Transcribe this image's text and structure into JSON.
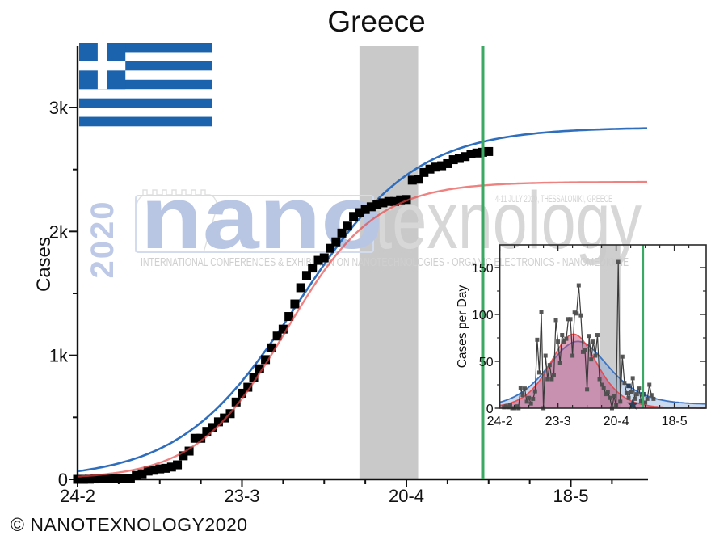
{
  "title": "Greece",
  "copyright": "© NANOTEXNOLOGY2020",
  "watermark": {
    "year": "2020",
    "logo_nano": "nano",
    "logo_tex": "texnology",
    "tagline": "INTERNATIONAL CONFERENCES & EXHIBITION ON NANOTECHNOLOGIES - ORGANIC ELECTRONICS - NANOMEDICINE",
    "event": "4-11 JULY 2020, THESSALONIKI, GREECE"
  },
  "colors": {
    "axis": "#111111",
    "square_marker": "#000000",
    "fit_blue": "#2e6ebd",
    "fit_red": "#e84545",
    "green_line": "#3aa963",
    "gray_band": "#c9c9c9",
    "inset_point": "#4f4f4f",
    "inset_line": "#3a3a3a",
    "pink_fill": "rgba(198,78,118,0.52)",
    "blue_fill": "rgba(130,165,215,0.42)",
    "star": "#2e4057",
    "flag_blue": "#1b63ac",
    "wm_blue": "#b9c6e3",
    "wm_gray": "#d7d7d7",
    "wm_tag": "#cfcfcf",
    "wm_box": "#d3dcef"
  },
  "chart_data": [
    {
      "type": "scatter",
      "name": "cumulative-cases",
      "title": "Greece",
      "ylabel": "Cases",
      "x_ticks": [
        {
          "day": 0,
          "label": "24-2"
        },
        {
          "day": 28,
          "label": "23-3"
        },
        {
          "day": 56,
          "label": "20-4"
        },
        {
          "day": 84,
          "label": "18-5"
        }
      ],
      "minor_x_days": [
        7,
        14,
        21,
        35,
        42,
        49,
        63,
        70,
        77,
        91
      ],
      "y_ticks": [
        {
          "v": 0,
          "label": "0"
        },
        {
          "v": 1000,
          "label": "1k"
        },
        {
          "v": 2000,
          "label": "2k"
        },
        {
          "v": 3000,
          "label": "3k"
        }
      ],
      "minor_y_values": [
        500,
        1500,
        2500
      ],
      "xlim_days": [
        0,
        97
      ],
      "ylim": [
        0,
        3496
      ],
      "grid": false,
      "legend": "none",
      "marker": "black-square",
      "series_note": "cumulative cases = running sum of daily_new through day 70",
      "last_data_day": 70,
      "fit_blue_logistic": {
        "L": 2840,
        "k": 10,
        "t0": 37.5
      },
      "fit_red_logistic": {
        "L": 2400,
        "k": 7.6,
        "t0": 35.5
      },
      "gray_band_days": [
        48,
        58
      ],
      "green_vline_day": 69
    },
    {
      "type": "scatter",
      "name": "daily-cases-inset",
      "ylabel": "Cases per Day",
      "x_ticks": [
        {
          "day": 0,
          "label": "24-2"
        },
        {
          "day": 28,
          "label": "23-3"
        },
        {
          "day": 56,
          "label": "20-4"
        },
        {
          "day": 84,
          "label": "18-5"
        }
      ],
      "minor_x_days": [
        7,
        14,
        21,
        35,
        42,
        49,
        63,
        70,
        77,
        91
      ],
      "y_ticks": [
        {
          "v": 0,
          "label": "0"
        },
        {
          "v": 50,
          "label": "50"
        },
        {
          "v": 100,
          "label": "100"
        },
        {
          "v": 150,
          "label": "150"
        }
      ],
      "minor_y_values": [
        25,
        75,
        125
      ],
      "xlim_days": [
        0,
        99.6
      ],
      "ylim": [
        0,
        174
      ],
      "grid": false,
      "daily_new": [
        [
          2,
          1
        ],
        [
          3,
          2
        ],
        [
          4,
          1
        ],
        [
          5,
          3
        ],
        [
          6,
          0
        ],
        [
          7,
          0
        ],
        [
          8,
          2
        ],
        [
          9,
          0
        ],
        [
          10,
          22
        ],
        [
          11,
          14
        ],
        [
          12,
          21
        ],
        [
          13,
          7
        ],
        [
          14,
          11
        ],
        [
          15,
          5
        ],
        [
          16,
          10
        ],
        [
          17,
          18
        ],
        [
          18,
          73
        ],
        [
          19,
          38
        ],
        [
          20,
          103
        ],
        [
          21,
          0
        ],
        [
          22,
          56
        ],
        [
          23,
          31
        ],
        [
          24,
          46
        ],
        [
          25,
          31
        ],
        [
          26,
          35
        ],
        [
          27,
          94
        ],
        [
          28,
          71
        ],
        [
          29,
          48
        ],
        [
          30,
          78
        ],
        [
          31,
          71
        ],
        [
          32,
          74
        ],
        [
          33,
          95
        ],
        [
          34,
          95
        ],
        [
          35,
          56
        ],
        [
          36,
          102
        ],
        [
          37,
          101
        ],
        [
          38,
          131
        ],
        [
          39,
          99
        ],
        [
          40,
          60
        ],
        [
          41,
          62
        ],
        [
          42,
          20
        ],
        [
          43,
          77
        ],
        [
          44,
          52
        ],
        [
          45,
          71
        ],
        [
          46,
          56
        ],
        [
          47,
          78
        ],
        [
          48,
          31
        ],
        [
          49,
          25
        ],
        [
          50,
          22
        ],
        [
          51,
          15
        ],
        [
          52,
          17
        ],
        [
          53,
          11
        ],
        [
          54,
          0
        ],
        [
          55,
          13
        ],
        [
          56,
          3
        ],
        [
          57,
          156
        ],
        [
          58,
          7
        ],
        [
          59,
          55
        ],
        [
          60,
          27
        ],
        [
          61,
          16
        ],
        [
          62,
          11
        ],
        [
          63,
          17
        ],
        [
          64,
          32
        ],
        [
          65,
          10
        ],
        [
          66,
          15
        ],
        [
          67,
          21
        ],
        [
          68,
          8
        ],
        [
          69,
          6
        ],
        [
          70,
          6
        ],
        [
          71,
          10
        ],
        [
          72,
          25
        ],
        [
          73,
          14
        ],
        [
          74,
          10
        ]
      ],
      "fit_curves_note": "red = derivative of main red logistic; blue = derivative of main blue logistic plus slow tail",
      "blue_tail": {
        "amp": 4,
        "mid": 55,
        "width": 6
      },
      "star_point": {
        "day": 64,
        "value": 4
      },
      "navy_dots_days": [
        62,
        69
      ],
      "gray_band_days": [
        48,
        58
      ],
      "green_vline_day": 69
    }
  ]
}
